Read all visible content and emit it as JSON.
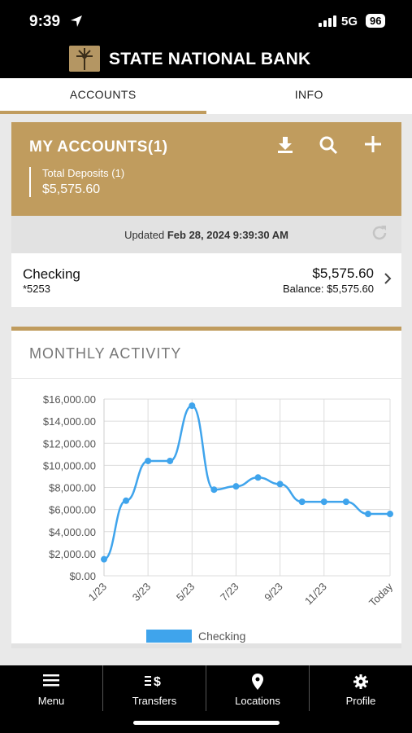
{
  "status": {
    "time": "9:39",
    "network": "5G",
    "battery": "96"
  },
  "brand": {
    "name": "STATE NATIONAL BANK"
  },
  "tabs": [
    {
      "label": "ACCOUNTS"
    },
    {
      "label": "INFO"
    }
  ],
  "accounts": {
    "title": "MY ACCOUNTS(1)",
    "icons": {
      "download": "download-icon",
      "search": "search-icon",
      "add": "plus-icon"
    },
    "total_label": "Total Deposits (1)",
    "total_amount": "$5,575.60",
    "updated_prefix": "Updated",
    "updated_value": "Feb 28, 2024 9:39:30 AM",
    "items": [
      {
        "name": "Checking",
        "number": "*5253",
        "amount": "$5,575.60",
        "balance": "Balance: $5,575.60"
      }
    ]
  },
  "activity": {
    "title": "MONTHLY ACTIVITY"
  },
  "chart_data": {
    "type": "line",
    "title": "MONTHLY ACTIVITY",
    "x": [
      "1/23",
      "2/23",
      "3/23",
      "4/23",
      "5/23",
      "6/23",
      "7/23",
      "8/23",
      "9/23",
      "10/23",
      "11/23",
      "12/23",
      "1/24",
      "Today"
    ],
    "x_tick_labels": [
      "1/23",
      "3/23",
      "5/23",
      "7/23",
      "9/23",
      "11/23",
      "Today"
    ],
    "series": [
      {
        "name": "Checking",
        "color": "#3fa4ec",
        "values": [
          1500,
          6800,
          10400,
          10400,
          15400,
          7800,
          8100,
          8900,
          8300,
          6700,
          6700,
          6700,
          5600,
          5600
        ]
      }
    ],
    "ylim": [
      0,
      16000
    ],
    "y_ticks": [
      0,
      2000,
      4000,
      6000,
      8000,
      10000,
      12000,
      14000,
      16000
    ],
    "y_tick_labels": [
      "$0.00",
      "$2,000.00",
      "$4,000.00",
      "$6,000.00",
      "$8,000.00",
      "$10,000.00",
      "$12,000.00",
      "$14,000.00",
      "$16,000.00"
    ],
    "grid": true,
    "legend": "bottom"
  },
  "nav": [
    {
      "label": "Menu",
      "icon": "menu-icon"
    },
    {
      "label": "Transfers",
      "icon": "transfers-icon"
    },
    {
      "label": "Locations",
      "icon": "location-pin-icon"
    },
    {
      "label": "Profile",
      "icon": "gear-icon"
    }
  ]
}
